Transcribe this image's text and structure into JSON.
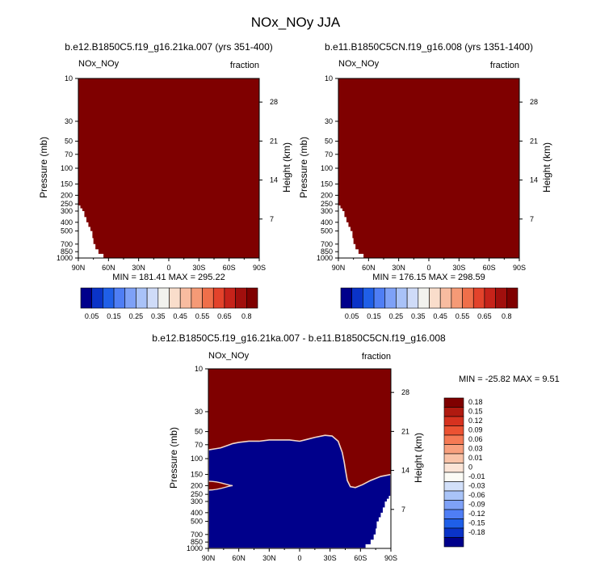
{
  "figure": {
    "title": "NOx_NOy JJA"
  },
  "chart_data": [
    {
      "type": "heatmap",
      "title": "b.e12.B1850C5.f19_g16.21ka.007 (yrs 351-400)",
      "left_string": "NOx_NOy",
      "right_string": "fraction",
      "xlabel": "",
      "ylabel": "Pressure (mb)",
      "ylabel_right": "Height (km)",
      "x_ticks": [
        "90N",
        "60N",
        "30N",
        "0",
        "30S",
        "60S",
        "90S"
      ],
      "y_ticks": [
        "10",
        "30",
        "50",
        "70",
        "100",
        "150",
        "200",
        "250",
        "300",
        "400",
        "500",
        "700",
        "850",
        "1000"
      ],
      "y_ticks_right": [
        "28",
        "21",
        "14",
        "7"
      ],
      "stats": "MIN = 181.41   MAX = 295.22",
      "colorbar": {
        "orientation": "horizontal",
        "labels": [
          "0.05",
          "0.15",
          "0.25",
          "0.35",
          "0.45",
          "0.55",
          "0.65",
          "0.8"
        ],
        "colors": [
          "#00008b",
          "#0a33c8",
          "#1f5fe8",
          "#4f7ef5",
          "#7ea1f7",
          "#a9c2f8",
          "#cfdbf8",
          "#f2f2ee",
          "#f9ddcb",
          "#f8bca0",
          "#f59a76",
          "#ef6f4a",
          "#e3432b",
          "#c6231a",
          "#a10f0d",
          "#7f0000"
        ]
      },
      "field": {
        "fill_color": "#7f0000",
        "description_free": true,
        "surface_mask": [
          [
            52,
            1000
          ],
          [
            65,
            900
          ],
          [
            70,
            800
          ],
          [
            73,
            700
          ],
          [
            75,
            600
          ],
          [
            76,
            500
          ],
          [
            78,
            450
          ],
          [
            80,
            400
          ],
          [
            82,
            350
          ],
          [
            84,
            300
          ],
          [
            86,
            280
          ],
          [
            88,
            260
          ],
          [
            90,
            240
          ]
        ]
      }
    },
    {
      "type": "heatmap",
      "title": "b.e11.B1850C5CN.f19_g16.008 (yrs 1351-1400)",
      "left_string": "NOx_NOy",
      "right_string": "fraction",
      "xlabel": "",
      "ylabel": "Pressure (mb)",
      "ylabel_right": "Height (km)",
      "x_ticks": [
        "90N",
        "60N",
        "30N",
        "0",
        "30S",
        "60S",
        "90S"
      ],
      "y_ticks": [
        "10",
        "30",
        "50",
        "70",
        "100",
        "150",
        "200",
        "250",
        "300",
        "400",
        "500",
        "700",
        "850",
        "1000"
      ],
      "y_ticks_right": [
        "28",
        "21",
        "14",
        "7"
      ],
      "stats": "MIN = 176.15   MAX = 298.59",
      "colorbar": {
        "orientation": "horizontal",
        "labels": [
          "0.05",
          "0.15",
          "0.25",
          "0.35",
          "0.45",
          "0.55",
          "0.65",
          "0.8"
        ],
        "colors": [
          "#00008b",
          "#0a33c8",
          "#1f5fe8",
          "#4f7ef5",
          "#7ea1f7",
          "#a9c2f8",
          "#cfdbf8",
          "#f2f2ee",
          "#f9ddcb",
          "#f8bca0",
          "#f59a76",
          "#ef6f4a",
          "#e3432b",
          "#c6231a",
          "#a10f0d",
          "#7f0000"
        ]
      },
      "field": {
        "fill_color": "#7f0000",
        "surface_mask": [
          [
            52,
            1000
          ],
          [
            65,
            900
          ],
          [
            70,
            800
          ],
          [
            73,
            700
          ],
          [
            75,
            600
          ],
          [
            76,
            500
          ],
          [
            78,
            450
          ],
          [
            80,
            400
          ],
          [
            82,
            350
          ],
          [
            84,
            300
          ],
          [
            86,
            280
          ],
          [
            88,
            260
          ],
          [
            90,
            240
          ]
        ]
      }
    },
    {
      "type": "heatmap",
      "title": "b.e12.B1850C5.f19_g16.21ka.007 - b.e11.B1850C5CN.f19_g16.008",
      "left_string": "NOx_NOy",
      "right_string": "fraction",
      "xlabel": "",
      "ylabel": "Pressure (mb)",
      "ylabel_right": "Height (km)",
      "x_ticks": [
        "90N",
        "60N",
        "30N",
        "0",
        "30S",
        "60S",
        "90S"
      ],
      "y_ticks": [
        "10",
        "30",
        "50",
        "70",
        "100",
        "150",
        "200",
        "250",
        "300",
        "400",
        "500",
        "700",
        "850",
        "1000"
      ],
      "y_ticks_right": [
        "28",
        "21",
        "14",
        "7"
      ],
      "stats": "MIN = -25.82   MAX =   9.51",
      "colorbar": {
        "orientation": "vertical",
        "labels": [
          "0.18",
          "0.15",
          "0.12",
          "0.09",
          "0.06",
          "0.03",
          "0.01",
          "0",
          "-0.01",
          "-0.03",
          "-0.06",
          "-0.09",
          "-0.12",
          "-0.15",
          "-0.18"
        ],
        "colors": [
          "#7f0000",
          "#b01a10",
          "#d6321f",
          "#eb5232",
          "#f57a55",
          "#f8a07e",
          "#f9c3a8",
          "#fbe4d6",
          "#fbfbf5",
          "#d2e0fa",
          "#a9c4f8",
          "#7ea1f7",
          "#4f7ef5",
          "#1f5fe8",
          "#0a33c8",
          "#00008b"
        ]
      },
      "field": {
        "upper_color": "#7f0000",
        "lower_color": "#00008b",
        "boundary_lat_pressure": [
          [
            90,
            80
          ],
          [
            84,
            78
          ],
          [
            78,
            76
          ],
          [
            72,
            72
          ],
          [
            66,
            68
          ],
          [
            60,
            66
          ],
          [
            50,
            64
          ],
          [
            40,
            64
          ],
          [
            30,
            62
          ],
          [
            20,
            62
          ],
          [
            10,
            62
          ],
          [
            0,
            64
          ],
          [
            -5,
            62
          ],
          [
            -15,
            58
          ],
          [
            -25,
            55
          ],
          [
            -32,
            56
          ],
          [
            -38,
            64
          ],
          [
            -42,
            85
          ],
          [
            -44,
            110
          ],
          [
            -45,
            130
          ],
          [
            -47,
            175
          ],
          [
            -50,
            205
          ],
          [
            -55,
            210
          ],
          [
            -62,
            195
          ],
          [
            -70,
            175
          ],
          [
            -80,
            158
          ],
          [
            -90,
            150
          ]
        ],
        "blob_positive": {
          "lat": [
            90,
            66
          ],
          "pressure_center": 200,
          "pressure_halfwidth_ratio": 1.12
        },
        "surface_mask": [
          [
            -52,
            1000
          ],
          [
            -65,
            900
          ],
          [
            -70,
            800
          ],
          [
            -73,
            700
          ],
          [
            -75,
            600
          ],
          [
            -76,
            500
          ],
          [
            -78,
            450
          ],
          [
            -80,
            400
          ],
          [
            -82,
            350
          ],
          [
            -84,
            300
          ],
          [
            -86,
            280
          ],
          [
            -88,
            260
          ],
          [
            -90,
            240
          ]
        ]
      }
    }
  ]
}
